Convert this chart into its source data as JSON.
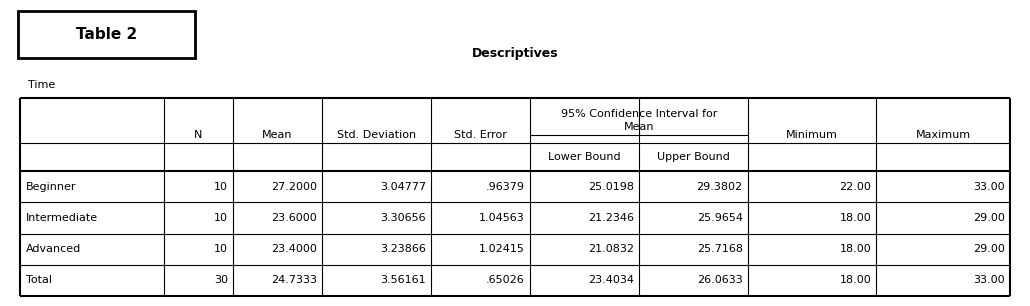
{
  "title_box_text": "Table 2",
  "subtitle": "Descriptives",
  "var_label": "Time",
  "rows": [
    [
      "Beginner",
      "10",
      "27.2000",
      "3.04777",
      ".96379",
      "25.0198",
      "29.3802",
      "22.00",
      "33.00"
    ],
    [
      "Intermediate",
      "10",
      "23.6000",
      "3.30656",
      "1.04563",
      "21.2346",
      "25.9654",
      "18.00",
      "29.00"
    ],
    [
      "Advanced",
      "10",
      "23.4000",
      "3.23866",
      "1.02415",
      "21.0832",
      "25.7168",
      "18.00",
      "29.00"
    ],
    [
      "Total",
      "30",
      "24.7333",
      "3.56161",
      ".65026",
      "23.4034",
      "26.0633",
      "18.00",
      "33.00"
    ]
  ],
  "bg_color": "#ffffff",
  "text_color": "#000000",
  "border_color": "#000000",
  "title_fontsize": 11,
  "subtitle_fontsize": 9,
  "varlabel_fontsize": 8,
  "table_fontsize": 8,
  "header_fontsize": 8
}
